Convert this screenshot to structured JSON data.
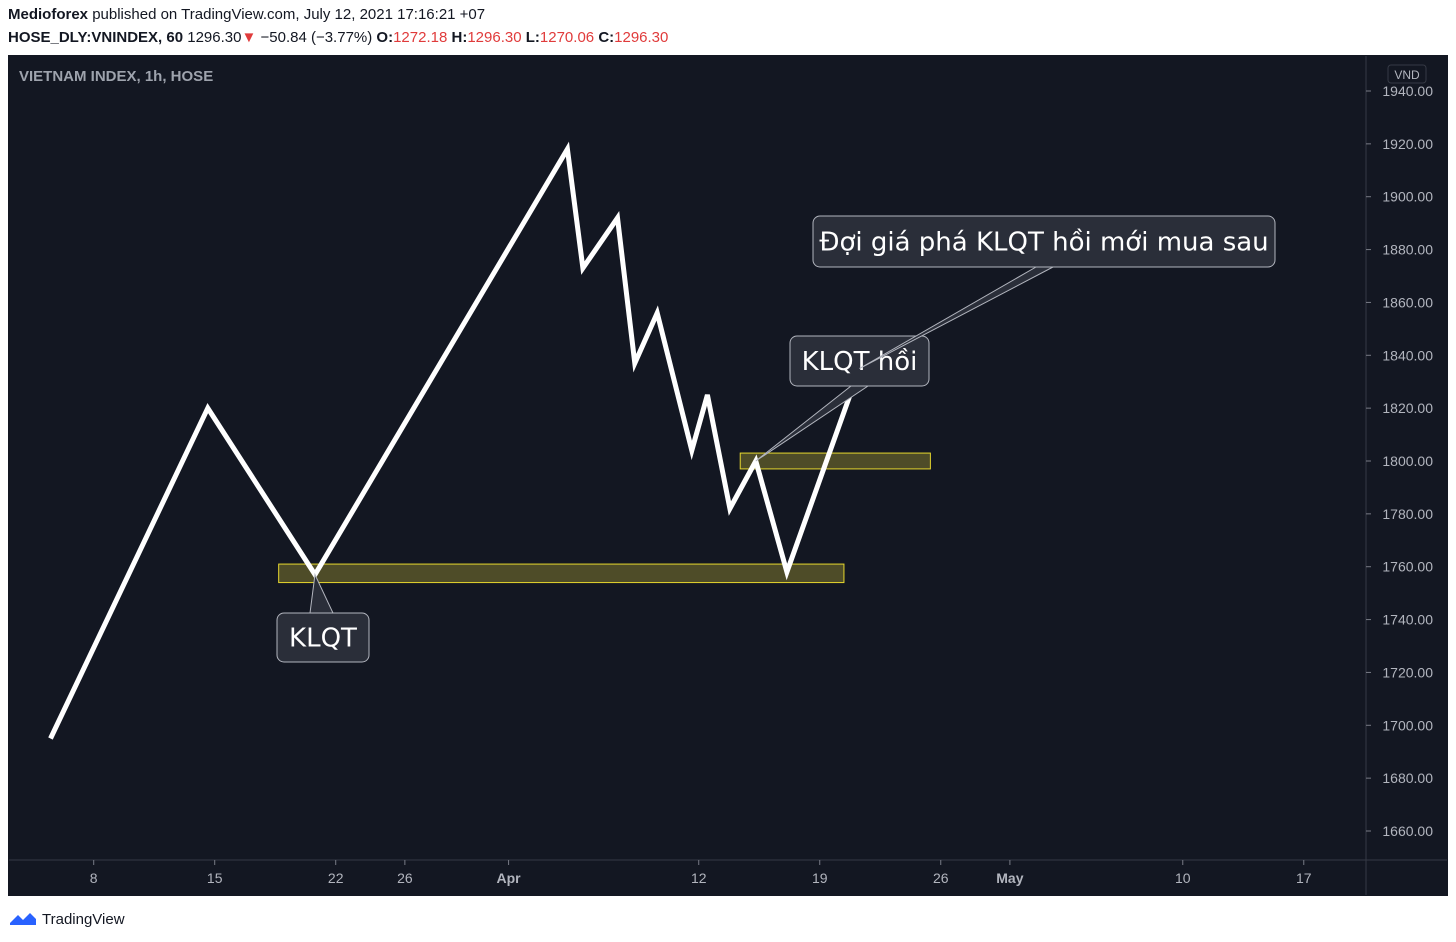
{
  "header": {
    "author": "Medioforex",
    "published": "published on TradingView.com, July 12, 2021 17:16:21 +07",
    "symbol": "HOSE_DLY:VNINDEX, 60",
    "last": "1296.30",
    "change_arrow": "▼",
    "change": "−50.84 (−3.77%)",
    "o_label": "O:",
    "o_value": "1272.18",
    "h_label": "H:",
    "h_value": "1296.30",
    "l_label": "L:",
    "l_value": "1270.06",
    "c_label": "C:",
    "c_value": "1296.30"
  },
  "footer": {
    "brand": "TradingView"
  },
  "chart_data": {
    "type": "line",
    "title": "VIETNAM INDEX, 1h, HOSE",
    "currency": "VND",
    "ylim": [
      1640,
      1948
    ],
    "y_ticks": [
      1660,
      1680,
      1700,
      1720,
      1740,
      1760,
      1780,
      1800,
      1820,
      1840,
      1860,
      1880,
      1900,
      1920,
      1940
    ],
    "x_ticks": [
      {
        "label": "8",
        "day": 8
      },
      {
        "label": "15",
        "day": 15
      },
      {
        "label": "22",
        "day": 22
      },
      {
        "label": "26",
        "day": 26
      },
      {
        "label": "Apr",
        "day": 32
      },
      {
        "label": "12",
        "day": 43
      },
      {
        "label": "19",
        "day": 50
      },
      {
        "label": "26",
        "day": 57
      },
      {
        "label": "May",
        "day": 61
      },
      {
        "label": "10",
        "day": 71
      },
      {
        "label": "17",
        "day": 78
      }
    ],
    "xlim": [
      3.1,
      81.6
    ],
    "series": [
      {
        "name": "price path",
        "points": [
          [
            5.5,
            1695
          ],
          [
            14.6,
            1820
          ],
          [
            20.8,
            1757
          ],
          [
            35.4,
            1918
          ],
          [
            36.3,
            1873
          ],
          [
            38.3,
            1892
          ],
          [
            39.3,
            1837
          ],
          [
            40.6,
            1856
          ],
          [
            42.6,
            1804
          ],
          [
            43.5,
            1825
          ],
          [
            44.8,
            1782
          ],
          [
            46.3,
            1800
          ],
          [
            48.1,
            1758
          ],
          [
            52.3,
            1835
          ]
        ]
      }
    ],
    "zones": [
      {
        "name": "KLQT",
        "x_start": 18.7,
        "x_end": 51.4,
        "y_low": 1754,
        "y_high": 1761
      },
      {
        "name": "KLQT hồi",
        "x_start": 45.4,
        "x_end": 56.4,
        "y_low": 1797,
        "y_high": 1803
      }
    ],
    "annotations": [
      {
        "text": "KLQT",
        "anchor_x": 20.8,
        "anchor_y": 1757
      },
      {
        "text": "KLQT hồi",
        "anchor_x": 46.3,
        "anchor_y": 1800
      },
      {
        "text": "Đợi giá phá KLQT hồi mới mua sau",
        "anchor_x": 52.3,
        "anchor_y": 1835
      }
    ]
  }
}
